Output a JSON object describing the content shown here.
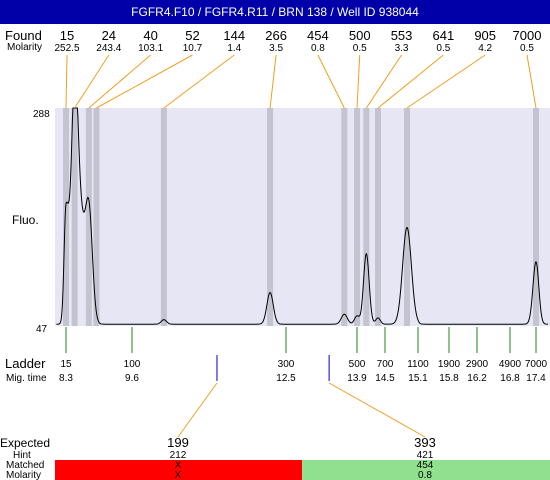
{
  "title": "FGFR4.F10 / FGFR4.R11 / BRN 138 / Well ID 938044",
  "labels": {
    "found": "Found",
    "molarity": "Molarity",
    "fluo": "Fluo.",
    "ladder": "Ladder",
    "mig_time": "Mig. time",
    "expected": "Expected",
    "hint": "Hint",
    "matched": "Matched",
    "molarity_row": "Molarity"
  },
  "colors": {
    "title_bg": "#0000a8",
    "plot_bg": "#e6e6f5",
    "peak_band": "#c4c4d0",
    "found_leader": "#f0a020",
    "ladder_tick": "#208020",
    "expected_marker": "#0000d0",
    "matched_red": "#ff0000",
    "matched_green": "#90e090"
  },
  "chart_data": {
    "type": "line",
    "ylabel": "Fluo.",
    "yticks": [
      "288",
      "47"
    ],
    "ylim": [
      47,
      288
    ],
    "found_peaks": [
      {
        "size": "15",
        "molarity": "252.5",
        "time": 8.3
      },
      {
        "size": "24",
        "molarity": "243.4",
        "time": 8.47
      },
      {
        "size": "40",
        "molarity": "103.1",
        "time": 8.75
      },
      {
        "size": "52",
        "molarity": "10.7",
        "time": 8.9
      },
      {
        "size": "144",
        "molarity": "1.4",
        "time": 10.2
      },
      {
        "size": "266",
        "molarity": "3.5",
        "time": 12.2
      },
      {
        "size": "454",
        "molarity": "0.8",
        "time": 13.65
      },
      {
        "size": "500",
        "molarity": "0.5",
        "time": 13.9
      },
      {
        "size": "553",
        "molarity": "3.3",
        "time": 14.1
      },
      {
        "size": "641",
        "molarity": "0.5",
        "time": 14.35
      },
      {
        "size": "905",
        "molarity": "4.2",
        "time": 14.9
      },
      {
        "size": "7000",
        "molarity": "0.5",
        "time": 17.4
      }
    ],
    "ladder": [
      {
        "size": "15",
        "time": "8.3"
      },
      {
        "size": "100",
        "time": "9.6"
      },
      {
        "size": "300",
        "time": "12.5"
      },
      {
        "size": "500",
        "time": "13.9"
      },
      {
        "size": "700",
        "time": "14.5"
      },
      {
        "size": "1100",
        "time": "15.1"
      },
      {
        "size": "1900",
        "time": "15.8"
      },
      {
        "size": "2900",
        "time": "16.2"
      },
      {
        "size": "4900",
        "time": "16.8"
      },
      {
        "size": "7000",
        "time": "17.4"
      }
    ],
    "trace": {
      "baseline": 49,
      "peaks": [
        {
          "time": 8.3,
          "height": 178,
          "width": 0.07
        },
        {
          "time": 8.47,
          "height": 288,
          "width": 0.06
        },
        {
          "time": 8.58,
          "height": 160,
          "width": 0.08
        },
        {
          "time": 8.75,
          "height": 175,
          "width": 0.07
        },
        {
          "time": 10.2,
          "height": 54,
          "width": 0.05
        },
        {
          "time": 12.2,
          "height": 84,
          "width": 0.06
        },
        {
          "time": 13.65,
          "height": 60,
          "width": 0.06
        },
        {
          "time": 13.9,
          "height": 58,
          "width": 0.05
        },
        {
          "time": 14.1,
          "height": 127,
          "width": 0.06
        },
        {
          "time": 14.35,
          "height": 56,
          "width": 0.05
        },
        {
          "time": 14.9,
          "height": 156,
          "width": 0.08
        },
        {
          "time": 17.4,
          "height": 118,
          "width": 0.07
        }
      ]
    },
    "expected": [
      {
        "size": "199",
        "hint": "212",
        "matched": "X",
        "molarity": "X",
        "status": "unmatched",
        "time": 11.2
      },
      {
        "size": "393",
        "hint": "421",
        "matched": "454",
        "molarity": "0.8",
        "status": "matched",
        "time": 13.35
      }
    ]
  }
}
